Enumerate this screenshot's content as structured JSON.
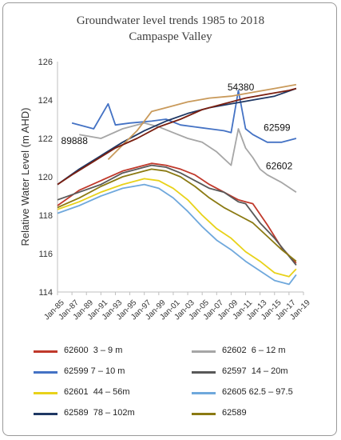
{
  "chart_data": {
    "type": "line",
    "title": "Groundwater level trends 1985 to 2018",
    "subtitle": "Campaspe Valley",
    "ylabel": "Relative Water Level (m AHD)",
    "xlabel": "",
    "ylim": [
      114,
      126
    ],
    "yticks": [
      114,
      116,
      118,
      120,
      122,
      124,
      126
    ],
    "xticks": [
      "Jan-85",
      "Jan-87",
      "Jan-89",
      "Jan-91",
      "Jan-93",
      "Jan-95",
      "Jan-97",
      "Jan-99",
      "Jan-01",
      "Jan-03",
      "Jan-05",
      "Jan-07",
      "Jan-09",
      "Jan-11",
      "Jan-13",
      "Jan-15",
      "Jan-17",
      "Jan-19"
    ],
    "xlim": [
      1985,
      2019
    ],
    "grid": false,
    "legend_position": "bottom",
    "annotations": [
      {
        "text": "54380",
        "x": 2008.5,
        "y": 124.5
      },
      {
        "text": "62599",
        "x": 2013.5,
        "y": 122.4
      },
      {
        "text": "89888",
        "x": 1985.5,
        "y": 121.7
      },
      {
        "text": "62602",
        "x": 2013.8,
        "y": 120.4
      }
    ],
    "series": [
      {
        "name": "62600  3 – 9 m",
        "color": "#c0392b",
        "x": [
          1985,
          1988,
          1991,
          1994,
          1997,
          1998,
          2000,
          2002,
          2004,
          2006,
          2008,
          2009,
          2010,
          2011,
          2012,
          2014,
          2016,
          2018
        ],
        "y": [
          118.5,
          119.3,
          119.8,
          120.3,
          120.6,
          120.7,
          120.6,
          120.4,
          120.1,
          119.6,
          119.2,
          119.0,
          118.8,
          118.7,
          118.6,
          117.5,
          116.3,
          115.5
        ]
      },
      {
        "name": "62602  6 – 12 m",
        "color": "#a6a6a6",
        "x": [
          1988,
          1991,
          1994,
          1997,
          1999,
          2001,
          2003,
          2005,
          2007,
          2009,
          2010,
          2011,
          2012,
          2013,
          2014,
          2016,
          2018
        ],
        "y": [
          122.2,
          122.0,
          122.5,
          122.8,
          122.6,
          122.3,
          122.0,
          121.8,
          121.3,
          120.6,
          122.5,
          121.5,
          121.0,
          120.4,
          120.1,
          119.7,
          119.2
        ]
      },
      {
        "name": "62599 7 – 10 m",
        "color": "#4472c4",
        "x": [
          1987,
          1990,
          1992,
          1993,
          1995,
          1998,
          2000,
          2002,
          2004,
          2006,
          2008,
          2009,
          2010,
          2011,
          2012,
          2014,
          2016,
          2018
        ],
        "y": [
          122.8,
          122.5,
          123.8,
          122.7,
          122.8,
          122.9,
          123.0,
          122.7,
          122.6,
          122.5,
          122.4,
          122.3,
          124.5,
          122.5,
          122.2,
          121.8,
          121.8,
          122.0
        ]
      },
      {
        "name": "62597  14 – 20m",
        "color": "#595959",
        "x": [
          1985,
          1988,
          1991,
          1994,
          1997,
          1998,
          2000,
          2002,
          2004,
          2006,
          2008,
          2010,
          2011,
          2013,
          2015,
          2018
        ],
        "y": [
          118.8,
          119.2,
          119.6,
          120.2,
          120.5,
          120.6,
          120.5,
          120.2,
          119.8,
          119.4,
          119.2,
          118.7,
          118.6,
          117.6,
          116.8,
          115.4
        ]
      },
      {
        "name": "62601  44 – 56m",
        "color": "#e8d21a",
        "x": [
          1985,
          1988,
          1991,
          1994,
          1997,
          1999,
          2001,
          2003,
          2005,
          2007,
          2009,
          2011,
          2013,
          2015,
          2017,
          2018
        ],
        "y": [
          118.3,
          118.7,
          119.2,
          119.6,
          119.9,
          119.8,
          119.4,
          118.8,
          118.0,
          117.3,
          116.8,
          116.1,
          115.6,
          115.0,
          114.8,
          115.2
        ]
      },
      {
        "name": "62605 62.5 – 97.5",
        "color": "#6fa8dc",
        "x": [
          1985,
          1988,
          1991,
          1994,
          1997,
          1999,
          2001,
          2003,
          2005,
          2007,
          2009,
          2011,
          2013,
          2015,
          2017,
          2018
        ],
        "y": [
          118.1,
          118.5,
          119.0,
          119.4,
          119.6,
          119.4,
          118.9,
          118.2,
          117.4,
          116.7,
          116.2,
          115.6,
          115.1,
          114.6,
          114.4,
          114.9
        ]
      },
      {
        "name": "62589  78 – 102m",
        "color": "#1f3864",
        "x": [
          1985,
          1988,
          1991,
          1994,
          1997,
          2000,
          2003,
          2006,
          2009,
          2012,
          2015,
          2018
        ],
        "y": [
          119.6,
          120.4,
          121.1,
          121.8,
          122.4,
          122.9,
          123.3,
          123.6,
          123.8,
          124.0,
          124.2,
          124.6
        ]
      },
      {
        "name": "62589",
        "color": "#8b7a12",
        "x": [
          1985,
          1988,
          1991,
          1994,
          1997,
          1998,
          2000,
          2002,
          2004,
          2006,
          2008,
          2010,
          2012,
          2014,
          2016,
          2018
        ],
        "y": [
          118.4,
          118.9,
          119.5,
          120.0,
          120.3,
          120.4,
          120.3,
          120.0,
          119.5,
          118.9,
          118.4,
          118.0,
          117.6,
          116.9,
          116.2,
          115.6
        ]
      },
      {
        "name": "",
        "color": "#c99a5b",
        "x": [
          1992,
          1996,
          1998,
          2000,
          2003,
          2006,
          2009,
          2012,
          2015,
          2018
        ],
        "y": [
          120.9,
          122.4,
          123.4,
          123.6,
          123.9,
          124.1,
          124.2,
          124.4,
          124.6,
          124.8
        ]
      },
      {
        "name": "",
        "color": "#7a1f10",
        "x": [
          1985,
          1987,
          1990,
          1993,
          1996,
          1999,
          2002,
          2005,
          2008,
          2011,
          2014,
          2017,
          2018
        ],
        "y": [
          119.6,
          120.1,
          120.8,
          121.5,
          122.0,
          122.6,
          123.0,
          123.5,
          123.8,
          124.1,
          124.3,
          124.5,
          124.6
        ]
      }
    ]
  },
  "legend": [
    {
      "label": "62600  3 – 9 m",
      "color": "#c0392b"
    },
    {
      "label": "62602  6 – 12 m",
      "color": "#a6a6a6"
    },
    {
      "label": "62599 7 – 10 m",
      "color": "#4472c4"
    },
    {
      "label": "62597  14 – 20m",
      "color": "#595959"
    },
    {
      "label": "62601  44 – 56m",
      "color": "#e8d21a"
    },
    {
      "label": "62605 62.5 – 97.5",
      "color": "#6fa8dc"
    },
    {
      "label": "62589  78 – 102m",
      "color": "#1f3864"
    },
    {
      "label": "62589",
      "color": "#8b7a12"
    }
  ]
}
